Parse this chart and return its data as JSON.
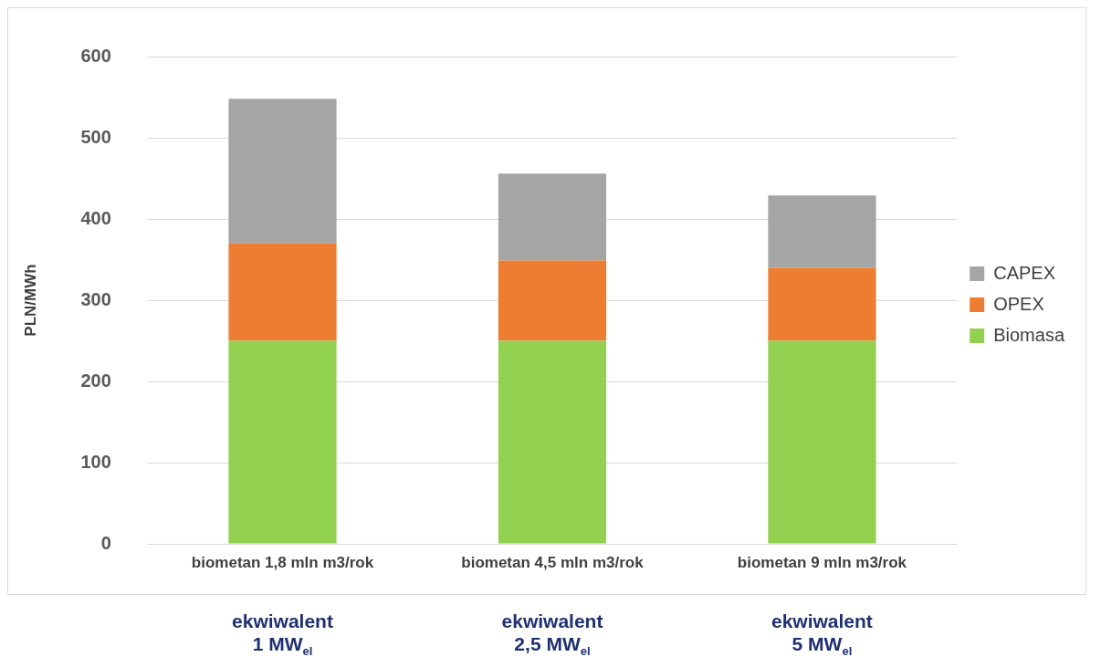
{
  "chart_data": {
    "type": "bar",
    "stacked": true,
    "ylabel": "PLN/MWh",
    "categories": [
      "biometan 1,8 mln m3/rok",
      "biometan 4,5 mln m3/rok",
      "biometan 9 mln m3/rok"
    ],
    "series": [
      {
        "name": "Biomasa",
        "color": "#92d050",
        "values": [
          250,
          250,
          250
        ]
      },
      {
        "name": "OPEX",
        "color": "#ed7d31",
        "values": [
          120,
          99,
          90
        ]
      },
      {
        "name": "CAPEX",
        "color": "#a5a5a5",
        "values": [
          178,
          107,
          89
        ]
      }
    ],
    "ylim": [
      0,
      600
    ],
    "yticks": [
      0,
      100,
      200,
      300,
      400,
      500,
      600
    ],
    "grid": "y",
    "legend": "right",
    "annotations": [
      "ekwiwalent\n1 MW$_{el}$",
      "ekwiwalent\n2,5 MW$_{el}$",
      "ekwiwalent\n5 MW$_{el}$"
    ]
  }
}
